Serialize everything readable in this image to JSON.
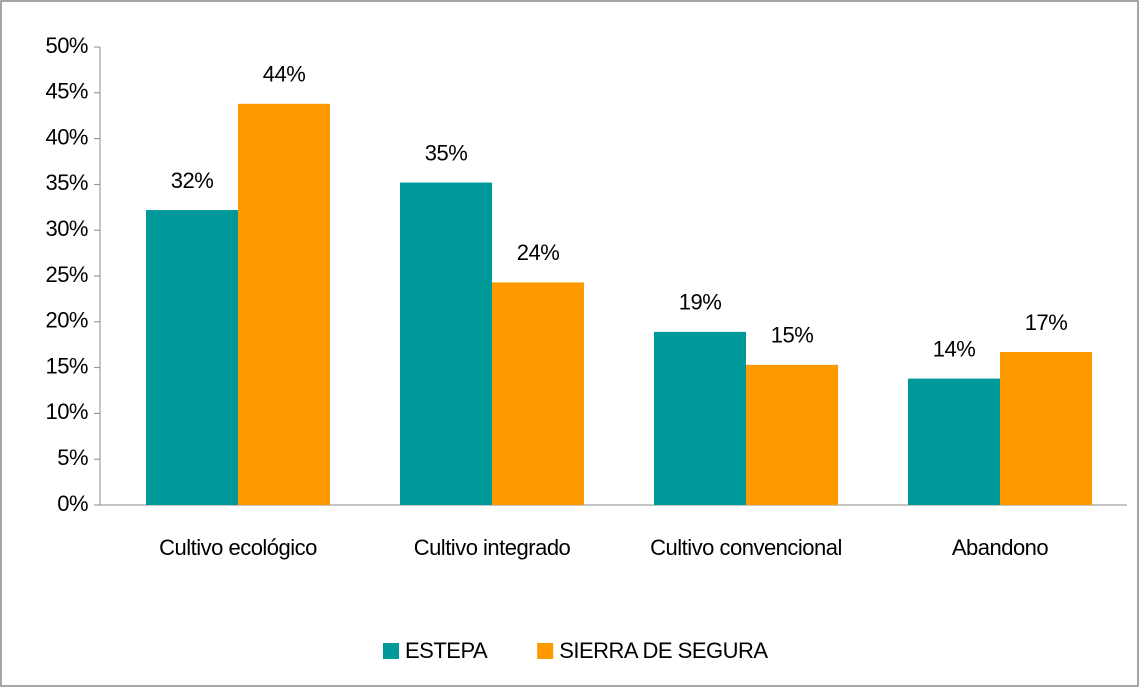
{
  "chart_data": {
    "type": "bar",
    "categories": [
      "Cultivo ecológico",
      "Cultivo integrado",
      "Cultivo convencional",
      "Abandono"
    ],
    "series": [
      {
        "name": "ESTEPA",
        "color": "#009999",
        "values": [
          32.2,
          35.2,
          18.9,
          13.8
        ],
        "value_labels": [
          "32%",
          "35%",
          "19%",
          "14%"
        ]
      },
      {
        "name": "SIERRA DE SEGURA",
        "color": "#ff9900",
        "values": [
          43.8,
          24.3,
          15.3,
          16.7
        ],
        "value_labels": [
          "44%",
          "24%",
          "15%",
          "17%"
        ]
      }
    ],
    "ylim": [
      0,
      50
    ],
    "yticks": [
      {
        "value": 0,
        "label": "0%"
      },
      {
        "value": 5,
        "label": "5%"
      },
      {
        "value": 10,
        "label": "10%"
      },
      {
        "value": 15,
        "label": "15%"
      },
      {
        "value": 20,
        "label": "20%"
      },
      {
        "value": 25,
        "label": "25%"
      },
      {
        "value": 30,
        "label": "30%"
      },
      {
        "value": 35,
        "label": "35%"
      },
      {
        "value": 40,
        "label": "40%"
      },
      {
        "value": 45,
        "label": "45%"
      },
      {
        "value": 50,
        "label": "50%"
      }
    ],
    "grid": false,
    "legend": "bottom"
  }
}
